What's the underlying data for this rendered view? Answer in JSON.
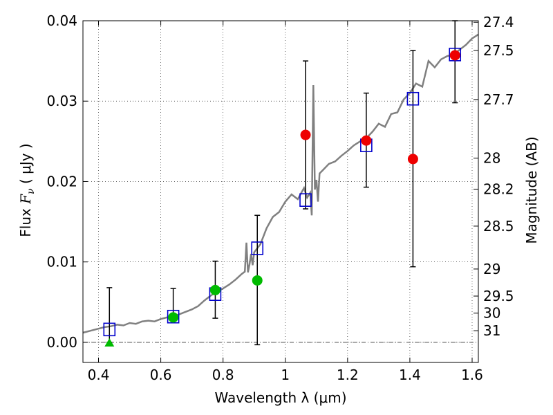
{
  "chart_data": {
    "type": "scatter",
    "xlabel": "Wavelength  λ (μm)",
    "ylabel": "Flux  F_ν  ( μJy )",
    "ylabel_parts": {
      "prefix": "Flux  ",
      "symbol": "F",
      "subscript": "ν",
      "suffix": "  ( μJy )"
    },
    "y2label": "Magnitude (AB)",
    "xlim": [
      0.35,
      1.62
    ],
    "ylim": [
      -0.0025,
      0.04
    ],
    "grid": true,
    "x_ticks": [
      {
        "value": 0.4,
        "label": "0.4"
      },
      {
        "value": 0.6,
        "label": "0.6"
      },
      {
        "value": 0.8,
        "label": "0.8"
      },
      {
        "value": 1.0,
        "label": "1"
      },
      {
        "value": 1.2,
        "label": "1.2"
      },
      {
        "value": 1.4,
        "label": "1.4"
      },
      {
        "value": 1.6,
        "label": "1.6"
      }
    ],
    "y_ticks": [
      {
        "value": 0.0,
        "label": "0.00"
      },
      {
        "value": 0.01,
        "label": "0.01"
      },
      {
        "value": 0.02,
        "label": "0.02"
      },
      {
        "value": 0.03,
        "label": "0.03"
      },
      {
        "value": 0.04,
        "label": "0.04"
      }
    ],
    "y2_ticks": [
      {
        "mag": 27.4,
        "label": "27.4"
      },
      {
        "mag": 27.5,
        "label": "27.5"
      },
      {
        "mag": 27.7,
        "label": "27.7"
      },
      {
        "mag": 28,
        "label": "28"
      },
      {
        "mag": 28.2,
        "label": "28.2"
      },
      {
        "mag": 28.5,
        "label": "28.5"
      },
      {
        "mag": 29,
        "label": "29"
      },
      {
        "mag": 29.5,
        "label": "29.5"
      },
      {
        "mag": 30,
        "label": "30"
      },
      {
        "mag": 31,
        "label": "31"
      }
    ],
    "colors": {
      "sed": "#808080",
      "model_squares": "#0000cc",
      "red_points": "#ee0000",
      "green_points": "#00bb00",
      "errorbar": "#000000",
      "zero_line": "#555555"
    },
    "sed_curve": {
      "x": [
        0.35,
        0.37,
        0.4,
        0.42,
        0.44,
        0.46,
        0.48,
        0.5,
        0.52,
        0.54,
        0.56,
        0.58,
        0.6,
        0.62,
        0.64,
        0.66,
        0.68,
        0.7,
        0.72,
        0.74,
        0.76,
        0.78,
        0.8,
        0.82,
        0.84,
        0.86,
        0.87,
        0.875,
        0.88,
        0.885,
        0.89,
        0.895,
        0.9,
        0.92,
        0.94,
        0.96,
        0.98,
        1.0,
        1.02,
        1.04,
        1.06,
        1.07,
        1.08,
        1.085,
        1.09,
        1.095,
        1.1,
        1.105,
        1.11,
        1.12,
        1.14,
        1.16,
        1.18,
        1.2,
        1.22,
        1.24,
        1.26,
        1.28,
        1.3,
        1.32,
        1.34,
        1.36,
        1.38,
        1.4,
        1.42,
        1.44,
        1.46,
        1.48,
        1.5,
        1.52,
        1.54,
        1.56,
        1.58,
        1.6,
        1.62
      ],
      "y": [
        0.0012,
        0.0014,
        0.0017,
        0.0019,
        0.002,
        0.0022,
        0.0021,
        0.0024,
        0.0023,
        0.0026,
        0.0027,
        0.0026,
        0.0029,
        0.0031,
        0.0032,
        0.0035,
        0.0038,
        0.0041,
        0.0045,
        0.0052,
        0.0058,
        0.0063,
        0.0067,
        0.0072,
        0.0078,
        0.0085,
        0.0088,
        0.0124,
        0.0087,
        0.0097,
        0.011,
        0.0096,
        0.0112,
        0.0122,
        0.0142,
        0.0156,
        0.0162,
        0.0175,
        0.0184,
        0.0178,
        0.0192,
        0.018,
        0.0186,
        0.0158,
        0.032,
        0.019,
        0.0202,
        0.0175,
        0.021,
        0.0214,
        0.0222,
        0.0225,
        0.0232,
        0.0238,
        0.0245,
        0.025,
        0.0254,
        0.0262,
        0.0272,
        0.0268,
        0.0284,
        0.0286,
        0.0302,
        0.031,
        0.0322,
        0.0318,
        0.035,
        0.0342,
        0.0352,
        0.0356,
        0.0358,
        0.0364,
        0.037,
        0.0378,
        0.0383
      ]
    },
    "series": [
      {
        "marker": "square",
        "points": [
          {
            "x": 0.435,
            "y": 0.0016
          },
          {
            "x": 0.64,
            "y": 0.0032
          },
          {
            "x": 0.775,
            "y": 0.006
          },
          {
            "x": 0.91,
            "y": 0.0117
          },
          {
            "x": 1.065,
            "y": 0.0177
          },
          {
            "x": 1.26,
            "y": 0.0245
          },
          {
            "x": 1.41,
            "y": 0.0303
          },
          {
            "x": 1.545,
            "y": 0.0358
          }
        ]
      },
      {
        "marker": "circle",
        "color_key": "green_points",
        "points": [
          {
            "x": 0.64,
            "y": 0.0031,
            "err_low": 0.0035,
            "err_high": 0.0067
          },
          {
            "x": 0.775,
            "y": 0.0065,
            "err_low": 0.003,
            "err_high": 0.0101
          },
          {
            "x": 0.91,
            "y": 0.0077,
            "err_low": -0.0003,
            "err_high": 0.0158
          }
        ]
      },
      {
        "marker": "triangle",
        "color_key": "green_points",
        "points": [
          {
            "x": 0.435,
            "y": 0.0,
            "err_low": 0.0,
            "err_high": 0.0068
          }
        ]
      },
      {
        "marker": "circle",
        "color_key": "red_points",
        "points": [
          {
            "x": 1.065,
            "y": 0.0258,
            "err_low": 0.0166,
            "err_high": 0.035
          },
          {
            "x": 1.26,
            "y": 0.0251,
            "err_low": 0.0193,
            "err_high": 0.031
          },
          {
            "x": 1.41,
            "y": 0.0228,
            "err_low": 0.0094,
            "err_high": 0.0363
          },
          {
            "x": 1.545,
            "y": 0.0357,
            "err_low": 0.0298,
            "err_high": 0.04
          }
        ]
      }
    ]
  }
}
